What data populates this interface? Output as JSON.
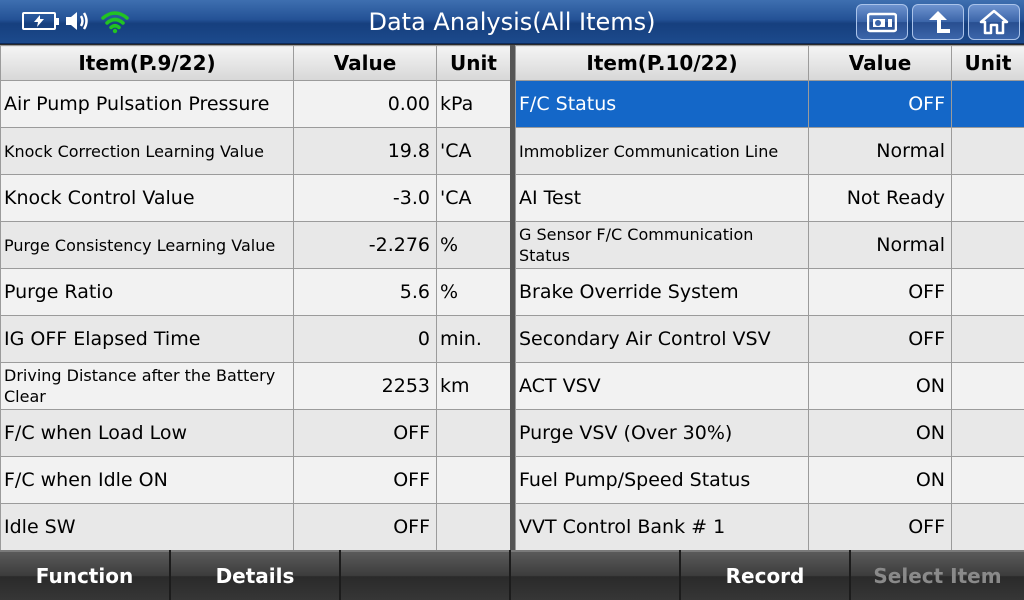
{
  "header": {
    "title": "Data Analysis(All Items)",
    "status_icons": [
      "battery-icon",
      "speaker-icon",
      "wifi-icon"
    ],
    "buttons": [
      "screenshot-icon",
      "back-icon",
      "home-icon"
    ]
  },
  "left_table": {
    "headers": {
      "item": "Item(P.9/22)",
      "value": "Value",
      "unit": "Unit"
    },
    "rows": [
      {
        "item": "Air Pump Pulsation Pressure",
        "value": "0.00",
        "unit": "kPa"
      },
      {
        "item": "Knock Correction Learning Value",
        "value": "19.8",
        "unit": "'CA"
      },
      {
        "item": "Knock Control Value",
        "value": "-3.0",
        "unit": "'CA"
      },
      {
        "item": "Purge Consistency Learning Value",
        "value": "-2.276",
        "unit": "%"
      },
      {
        "item": "Purge Ratio",
        "value": "5.6",
        "unit": "%"
      },
      {
        "item": "IG OFF Elapsed Time",
        "value": "0",
        "unit": "min."
      },
      {
        "item": "Driving Distance after the Battery Clear",
        "value": "2253",
        "unit": "km"
      },
      {
        "item": "F/C when Load Low",
        "value": "OFF",
        "unit": ""
      },
      {
        "item": "F/C when Idle ON",
        "value": "OFF",
        "unit": ""
      },
      {
        "item": "Idle SW",
        "value": "OFF",
        "unit": ""
      }
    ]
  },
  "right_table": {
    "headers": {
      "item": "Item(P.10/22)",
      "value": "Value",
      "unit": "Unit"
    },
    "rows": [
      {
        "item": "F/C Status",
        "value": "OFF",
        "unit": ""
      },
      {
        "item": "Immoblizer Communication Line",
        "value": "Normal",
        "unit": ""
      },
      {
        "item": "AI Test",
        "value": "Not Ready",
        "unit": ""
      },
      {
        "item": "G Sensor F/C Communication Status",
        "value": "Normal",
        "unit": ""
      },
      {
        "item": "Brake Override System",
        "value": "OFF",
        "unit": ""
      },
      {
        "item": "Secondary Air Control VSV",
        "value": "OFF",
        "unit": ""
      },
      {
        "item": "ACT VSV",
        "value": "ON",
        "unit": ""
      },
      {
        "item": "Purge VSV (Over 30%)",
        "value": "ON",
        "unit": ""
      },
      {
        "item": "Fuel Pump/Speed Status",
        "value": "ON",
        "unit": ""
      },
      {
        "item": "VVT Control Bank # 1",
        "value": "OFF",
        "unit": ""
      }
    ]
  },
  "footer": {
    "buttons": [
      {
        "label": "Function",
        "enabled": true
      },
      {
        "label": "Details",
        "enabled": true
      },
      {
        "label": "",
        "enabled": true
      },
      {
        "label": "",
        "enabled": true
      },
      {
        "label": "Record",
        "enabled": true
      },
      {
        "label": "Select Item",
        "enabled": false
      }
    ]
  },
  "colors": {
    "selected_row": "#1467c8",
    "wifi": "#22c322",
    "header_blue": "#245296"
  }
}
